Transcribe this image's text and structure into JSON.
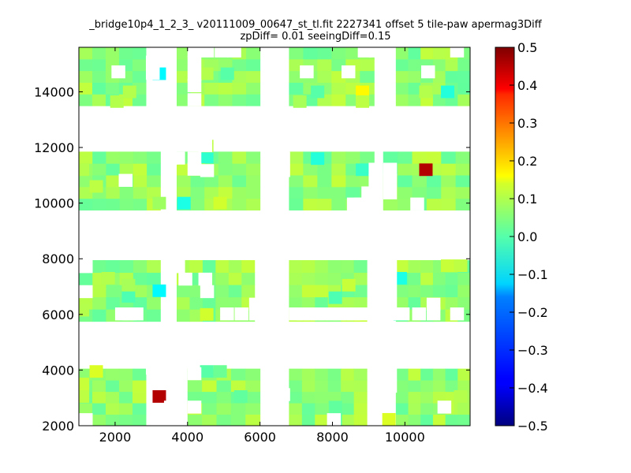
{
  "chart_data": {
    "type": "heatmap",
    "title_line1": "_bridge10p4_1_2_3_ v20111009_00647_st_tl.fit 2227341 offset 5 tile-paw apermag3Diff",
    "title_line2": "zpDiff= 0.01 seeingDiff=0.15",
    "xlim": [
      1000,
      11800
    ],
    "ylim": [
      2000,
      15600
    ],
    "x_ticks": [
      2000,
      4000,
      6000,
      8000,
      10000
    ],
    "y_ticks": [
      2000,
      4000,
      6000,
      8000,
      10000,
      12000,
      14000
    ],
    "colorbar": {
      "colormap": "jet",
      "vmin": -0.5,
      "vmax": 0.5,
      "ticks": [
        0.5,
        0.4,
        0.3,
        0.2,
        0.1,
        0.0,
        -0.1,
        -0.2,
        -0.3,
        -0.4,
        -0.5
      ],
      "tick_labels": [
        "0.5",
        "0.4",
        "0.3",
        "0.2",
        "0.1",
        "0.0",
        "−0.1",
        "−0.2",
        "−0.3",
        "−0.4",
        "−0.5"
      ]
    },
    "grid": false,
    "cell_size": [
      370,
      450
    ],
    "baseline_value": 0.02,
    "tiles": [
      {
        "x": [
          1000,
          2850
        ],
        "y": [
          2000,
          4050
        ],
        "rows": [
          "0000000",
          "0000000",
          "0000000",
          "0000000",
          "0000000"
        ]
      },
      {
        "x": [
          4000,
          6000
        ],
        "y": [
          2000,
          4050
        ],
        "rows": [
          "00000",
          "00000",
          "00000",
          "00000",
          "00000"
        ]
      },
      {
        "x": [
          6800,
          8950
        ],
        "y": [
          2000,
          4050
        ],
        "rows": [
          "000000",
          "000000",
          "000000",
          "000000",
          "000000"
        ]
      },
      {
        "x": [
          9750,
          11800
        ],
        "y": [
          2000,
          4050
        ],
        "rows": [
          "000000",
          "000000",
          "000000",
          "000000",
          "000000"
        ]
      },
      {
        "x": [
          1000,
          3250
        ],
        "y": [
          5750,
          7950
        ],
        "rows": [
          "000000",
          "000000",
          "000000",
          "000000",
          "000000"
        ]
      },
      {
        "x": [
          3700,
          5850
        ],
        "y": [
          5750,
          7950
        ],
        "rows": [
          "000000",
          "000000",
          "000000",
          "000000",
          "000000"
        ]
      },
      {
        "x": [
          6800,
          8950
        ],
        "y": [
          5750,
          7950
        ],
        "rows": [
          "000000",
          "000000",
          "000000",
          "000000",
          "000000"
        ]
      },
      {
        "x": [
          9750,
          11800
        ],
        "y": [
          5750,
          7950
        ],
        "rows": [
          "000000",
          "000000",
          "000000",
          "000000",
          "000000"
        ]
      },
      {
        "x": [
          1000,
          3250
        ],
        "y": [
          9750,
          11850
        ],
        "rows": [
          "000000",
          "000000",
          "000000",
          "000000",
          "000000"
        ]
      },
      {
        "x": [
          3700,
          6000
        ],
        "y": [
          9750,
          11850
        ],
        "rows": [
          "000000",
          "000000",
          "000000",
          "000000",
          "000000"
        ]
      },
      {
        "x": [
          6800,
          9150
        ],
        "y": [
          9750,
          11850
        ],
        "rows": [
          "000000",
          "000000",
          "000000",
          "000000",
          "000000"
        ]
      },
      {
        "x": [
          9400,
          11800
        ],
        "y": [
          9750,
          11850
        ],
        "rows": [
          "000000",
          "000000",
          "000000",
          "000000",
          "000000"
        ]
      },
      {
        "x": [
          1000,
          2850
        ],
        "y": [
          13500,
          15600
        ],
        "rows": [
          "000000",
          "000000",
          "000000",
          "000000",
          "000000"
        ]
      },
      {
        "x": [
          3700,
          6000
        ],
        "y": [
          13500,
          15600
        ],
        "rows": [
          "000000",
          "000000",
          "000000",
          "000000",
          "000000"
        ]
      },
      {
        "x": [
          6800,
          9150
        ],
        "y": [
          13500,
          15600
        ],
        "rows": [
          "000000",
          "000000",
          "000000",
          "000000",
          "000000"
        ]
      },
      {
        "x": [
          9750,
          11800
        ],
        "y": [
          13500,
          15600
        ],
        "rows": [
          "000000",
          "000000",
          "000000",
          "000000",
          "000000"
        ]
      }
    ],
    "holes": [
      [
        1000,
        2000
      ],
      [
        2850,
        3850
      ],
      [
        3000,
        3550
      ],
      [
        3350,
        2450
      ],
      [
        4000,
        3650
      ],
      [
        4000,
        2450
      ],
      [
        6450,
        2900
      ],
      [
        7850,
        2000
      ],
      [
        9400,
        3650
      ],
      [
        9400,
        3200
      ],
      [
        10900,
        2450
      ],
      [
        1000,
        7500
      ],
      [
        1000,
        6600
      ],
      [
        2000,
        5800
      ],
      [
        2200,
        5800
      ],
      [
        2400,
        5800
      ],
      [
        3550,
        7500
      ],
      [
        4350,
        6600
      ],
      [
        4900,
        5800
      ],
      [
        5300,
        5800
      ],
      [
        5700,
        5800
      ],
      [
        5700,
        6150
      ],
      [
        3750,
        7050
      ],
      [
        4300,
        7050
      ],
      [
        6800,
        5800
      ],
      [
        7000,
        5800
      ],
      [
        7200,
        5800
      ],
      [
        7400,
        5800
      ],
      [
        7600,
        5800
      ],
      [
        7800,
        5800
      ],
      [
        8000,
        5800
      ],
      [
        8200,
        5800
      ],
      [
        8400,
        5800
      ],
      [
        8600,
        5800
      ],
      [
        9400,
        7500
      ],
      [
        9400,
        7050
      ],
      [
        9400,
        6600
      ],
      [
        9400,
        6150
      ],
      [
        9400,
        5800
      ],
      [
        9750,
        5800
      ],
      [
        10200,
        5800
      ],
      [
        10600,
        6150
      ],
      [
        10600,
        5800
      ],
      [
        11250,
        5800
      ],
      [
        2100,
        10600
      ],
      [
        3350,
        11400
      ],
      [
        3550,
        11400
      ],
      [
        4300,
        11850
      ],
      [
        4000,
        11400
      ],
      [
        4000,
        11000
      ],
      [
        4350,
        10950
      ],
      [
        6450,
        11400
      ],
      [
        6450,
        10950
      ],
      [
        8400,
        9750
      ],
      [
        8600,
        9750
      ],
      [
        8800,
        9750
      ],
      [
        9000,
        9750
      ],
      [
        8800,
        10150
      ],
      [
        9000,
        10150
      ],
      [
        9000,
        10600
      ],
      [
        9000,
        11000
      ],
      [
        10150,
        9750
      ],
      [
        9400,
        11000
      ],
      [
        9400,
        10600
      ],
      [
        9400,
        10150
      ],
      [
        4000,
        13500
      ],
      [
        4000,
        14000
      ],
      [
        4000,
        14400
      ],
      [
        4000,
        14850
      ],
      [
        4000,
        15250
      ],
      [
        4750,
        15250
      ],
      [
        4350,
        15250
      ],
      [
        5100,
        15250
      ],
      [
        1900,
        14500
      ],
      [
        2850,
        14850
      ],
      [
        2850,
        14450
      ],
      [
        7100,
        14500
      ],
      [
        8250,
        14500
      ],
      [
        8700,
        15250
      ],
      [
        9000,
        15250
      ],
      [
        10450,
        14500
      ],
      [
        11250,
        15250
      ],
      [
        11800,
        15250
      ]
    ],
    "anomalies": [
      {
        "x": 1480,
        "y": 3950,
        "value": 0.09
      },
      {
        "x": 1100,
        "y": 3500,
        "value": 0.07
      },
      {
        "x": 1100,
        "y": 3050,
        "value": 0.06
      },
      {
        "x": 3220,
        "y": 3050,
        "value": 0.45
      },
      {
        "x": 5470,
        "y": 3050,
        "value": -0.03
      },
      {
        "x": 4530,
        "y": 3950,
        "value": -0.04
      },
      {
        "x": 4900,
        "y": 3950,
        "value": -0.02
      },
      {
        "x": 9560,
        "y": 2230,
        "value": 0.09
      },
      {
        "x": 8080,
        "y": 2230,
        "value": -0.04
      },
      {
        "x": 8080,
        "y": 2670,
        "value": -0.03
      },
      {
        "x": 11180,
        "y": 2670,
        "value": 0.06
      },
      {
        "x": 11540,
        "y": 3050,
        "value": 0.05
      },
      {
        "x": 1100,
        "y": 6150,
        "value": 0.05
      },
      {
        "x": 3220,
        "y": 6850,
        "value": -0.13
      },
      {
        "x": 2370,
        "y": 6650,
        "value": -0.05
      },
      {
        "x": 4530,
        "y": 6000,
        "value": 0.08
      },
      {
        "x": 8080,
        "y": 6600,
        "value": -0.05
      },
      {
        "x": 8450,
        "y": 7050,
        "value": 0.07
      },
      {
        "x": 9870,
        "y": 7300,
        "value": -0.1
      },
      {
        "x": 9870,
        "y": 6000,
        "value": -0.06
      },
      {
        "x": 11180,
        "y": 7750,
        "value": 0.07
      },
      {
        "x": 11540,
        "y": 7750,
        "value": 0.06
      },
      {
        "x": 1810,
        "y": 7300,
        "value": 0.05
      },
      {
        "x": 2370,
        "y": 7050,
        "value": 0.04
      },
      {
        "x": 3220,
        "y": 10000,
        "value": 0.03
      },
      {
        "x": 3900,
        "y": 10000,
        "value": -0.1
      },
      {
        "x": 4900,
        "y": 10000,
        "value": 0.08
      },
      {
        "x": 4530,
        "y": 11650,
        "value": -0.08
      },
      {
        "x": 4300,
        "y": 11200,
        "value": 0.05
      },
      {
        "x": 4530,
        "y": 12050,
        "value": 0.06
      },
      {
        "x": 7590,
        "y": 11600,
        "value": -0.09
      },
      {
        "x": 8830,
        "y": 11200,
        "value": -0.07
      },
      {
        "x": 10580,
        "y": 11200,
        "value": 0.45
      },
      {
        "x": 1100,
        "y": 11200,
        "value": 0.05
      },
      {
        "x": 1480,
        "y": 10600,
        "value": 0.06
      },
      {
        "x": 3220,
        "y": 14650,
        "value": -0.13
      },
      {
        "x": 2400,
        "y": 14000,
        "value": 0.05
      },
      {
        "x": 2050,
        "y": 13650,
        "value": 0.05
      },
      {
        "x": 4530,
        "y": 14650,
        "value": 0.05
      },
      {
        "x": 5100,
        "y": 14650,
        "value": -0.04
      },
      {
        "x": 8830,
        "y": 14000,
        "value": 0.13
      },
      {
        "x": 8830,
        "y": 13650,
        "value": 0.06
      },
      {
        "x": 7590,
        "y": 14000,
        "value": -0.04
      },
      {
        "x": 11180,
        "y": 14000,
        "value": -0.09
      },
      {
        "x": 10580,
        "y": 14000,
        "value": 0.05
      },
      {
        "x": 7100,
        "y": 13650,
        "value": 0.04
      }
    ]
  }
}
